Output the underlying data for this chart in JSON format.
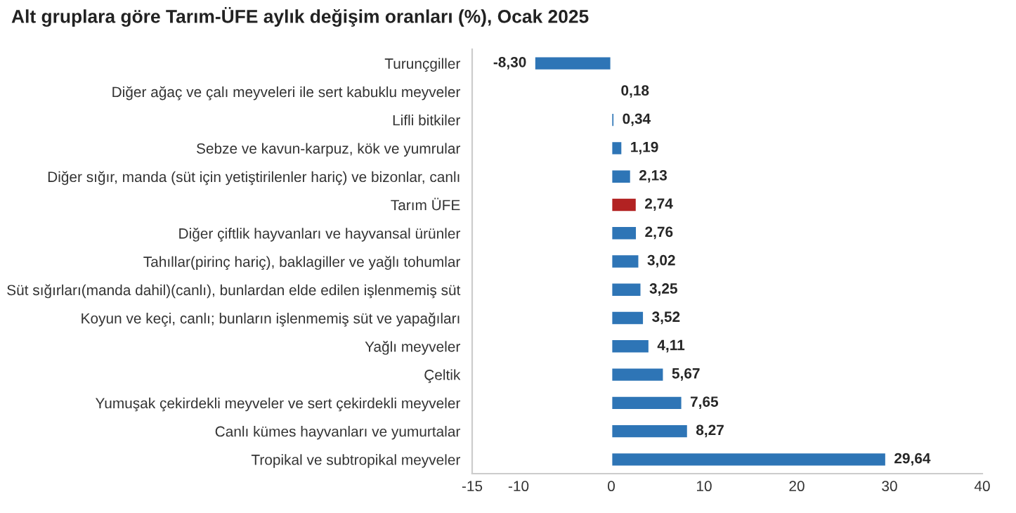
{
  "chart_data": {
    "type": "bar",
    "orientation": "horizontal",
    "title": "Alt gruplara göre Tarım-ÜFE aylık değişim oranları (%), Ocak 2025",
    "categories": [
      "Turunçgiller",
      "Diğer ağaç ve çalı meyveleri ile sert kabuklu meyveler",
      "Lifli bitkiler",
      "Sebze ve kavun-karpuz, kök ve yumrular",
      "Diğer sığır, manda (süt için yetiştirilenler hariç) ve bizonlar, canlı",
      "Tarım ÜFE",
      "Diğer çiftlik hayvanları ve hayvansal ürünler",
      "Tahıllar(pirinç hariç), baklagiller ve yağlı tohumlar",
      "Süt sığırları(manda dahil)(canlı), bunlardan elde edilen işlenmemiş süt",
      "Koyun ve keçi, canlı; bunların işlenmemiş süt ve yapağıları",
      "Yağlı meyveler",
      "Çeltik",
      "Yumuşak çekirdekli meyveler ve sert çekirdekli meyveler",
      "Canlı kümes hayvanları ve yumurtalar",
      "Tropikal ve subtropikal meyveler"
    ],
    "values": [
      -8.3,
      0.18,
      0.34,
      1.19,
      2.13,
      2.74,
      2.76,
      3.02,
      3.25,
      3.52,
      4.11,
      5.67,
      7.65,
      8.27,
      29.64
    ],
    "value_labels": [
      "-8,30",
      "0,18",
      "0,34",
      "1,19",
      "2,13",
      "2,74",
      "2,76",
      "3,02",
      "3,25",
      "3,52",
      "4,11",
      "5,67",
      "7,65",
      "8,27",
      "29,64"
    ],
    "colors": [
      "#2e75b6",
      "#2e75b6",
      "#2e75b6",
      "#2e75b6",
      "#2e75b6",
      "#b22222",
      "#2e75b6",
      "#2e75b6",
      "#2e75b6",
      "#2e75b6",
      "#2e75b6",
      "#2e75b6",
      "#2e75b6",
      "#2e75b6",
      "#2e75b6"
    ],
    "xlim": [
      -15,
      40
    ],
    "xticks": [
      -15,
      -10,
      0,
      10,
      20,
      30,
      40
    ],
    "grid": false,
    "legend": false
  }
}
